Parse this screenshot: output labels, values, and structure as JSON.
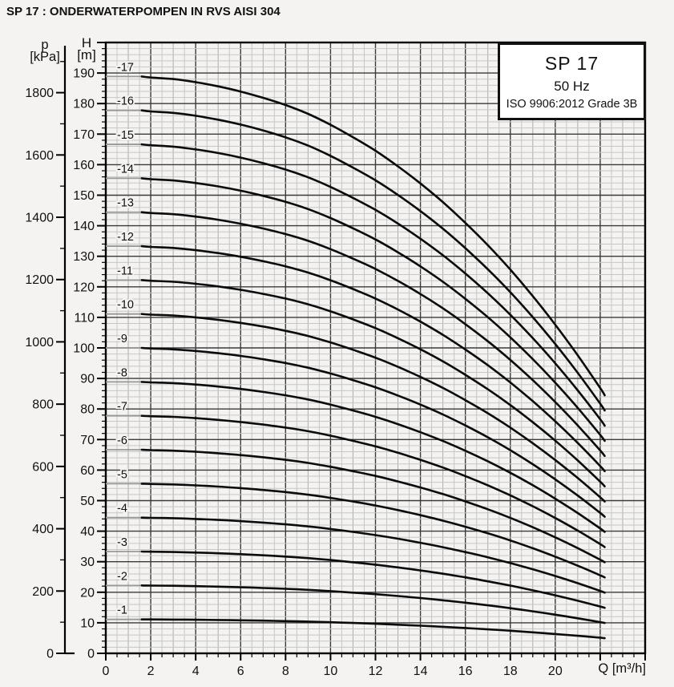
{
  "page": {
    "title": "SP 17 : ONDERWATERPOMPEN IN RVS AISI 304"
  },
  "legend": {
    "model": "SP 17",
    "frequency": "50 Hz",
    "standard": "ISO 9906:2012 Grade 3B"
  },
  "axes": {
    "pressure": {
      "symbol": "p",
      "unit": "[kPa]"
    },
    "head": {
      "symbol": "H",
      "unit": "[m]"
    },
    "flow": {
      "label": "Q [m³/h]"
    }
  },
  "colors": {
    "curve": "#0b0b0b",
    "lead_in": "#989898",
    "grid_minor": "#c6c6c6",
    "grid_mid": "#adadad",
    "grid_major": "#3a3a3a",
    "axis": "#000000",
    "background": "#f4f3f1",
    "legend_bg": "#ffffff",
    "text": "#111111"
  },
  "chart_data": {
    "type": "line",
    "title": "SP 17",
    "subtitle": "50 Hz",
    "standard": "ISO 9906:2012 Grade 3B",
    "xlabel": "Q [m³/h]",
    "ylabel_left": "p [kPa]",
    "ylabel_right": "H [m]",
    "legend_position": "top-right",
    "grid": {
      "vertical_minor": 0.5,
      "vertical_major": 2,
      "horizontal_minor": 2,
      "horizontal_major": 10
    },
    "x_axis_range": [
      0,
      24
    ],
    "head_axis_range": [
      0,
      200
    ],
    "pressure_axis_range": [
      0,
      1961
    ],
    "x_ticks_labeled": [
      0,
      2,
      4,
      6,
      8,
      10,
      12,
      14,
      16,
      18,
      20
    ],
    "head_ticks_labeled": [
      0,
      10,
      20,
      30,
      40,
      50,
      60,
      70,
      80,
      90,
      100,
      110,
      120,
      130,
      140,
      150,
      160,
      170,
      180,
      190
    ],
    "pressure_ticks_labeled": [
      0,
      200,
      400,
      600,
      800,
      1000,
      1200,
      1400,
      1600,
      1800
    ],
    "curve_q_start": 1.6,
    "curve_q_end": 22.2,
    "lead_in_from_q": 0,
    "q_samples": [
      1.6,
      2,
      3,
      4,
      5,
      6,
      7,
      8,
      9,
      10,
      11,
      12,
      13,
      14,
      15,
      16,
      17,
      18,
      19,
      20,
      21,
      22,
      22.2
    ],
    "per_stage_head": [
      11.11,
      11.09,
      11.06,
      11.0,
      10.92,
      10.82,
      10.7,
      10.56,
      10.39,
      10.18,
      9.94,
      9.68,
      9.38,
      9.05,
      8.69,
      8.29,
      7.86,
      7.39,
      6.88,
      6.33,
      5.74,
      5.11,
      4.97
    ],
    "series": [
      {
        "name": "-1",
        "stages": 1
      },
      {
        "name": "-2",
        "stages": 2
      },
      {
        "name": "-3",
        "stages": 3
      },
      {
        "name": "-4",
        "stages": 4
      },
      {
        "name": "-5",
        "stages": 5
      },
      {
        "name": "-6",
        "stages": 6
      },
      {
        "name": "-7",
        "stages": 7
      },
      {
        "name": "-8",
        "stages": 8
      },
      {
        "name": "-9",
        "stages": 9
      },
      {
        "name": "-10",
        "stages": 10
      },
      {
        "name": "-11",
        "stages": 11
      },
      {
        "name": "-12",
        "stages": 12
      },
      {
        "name": "-13",
        "stages": 13
      },
      {
        "name": "-14",
        "stages": 14
      },
      {
        "name": "-15",
        "stages": 15
      },
      {
        "name": "-16",
        "stages": 16
      },
      {
        "name": "-17",
        "stages": 17
      }
    ]
  }
}
